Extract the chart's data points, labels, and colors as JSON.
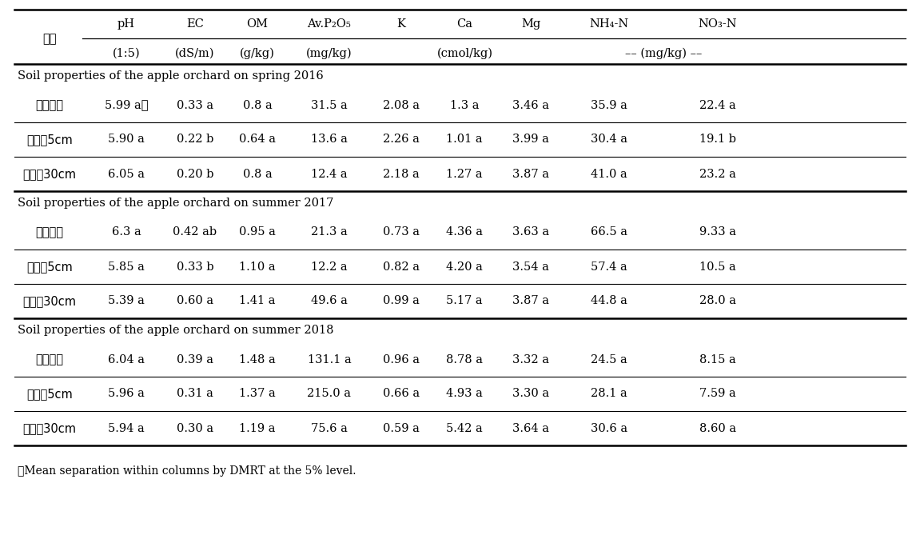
{
  "col_headers_line1": [
    "pH",
    "EC",
    "OM",
    "Av.P₂O₅",
    "K",
    "Ca",
    "Mg",
    "NH₄-N",
    "NO₃-N"
  ],
  "col_headers_line2": [
    "(1:5)",
    "(dS/m)",
    "(g/kg)",
    "(mg/kg)",
    "",
    "(cmol/kg)",
    "",
    "-- (mg/kg) --",
    ""
  ],
  "chori_label": "처리",
  "section_headers": [
    "Soil properties of the apple orchard on spring 2016",
    "Soil properties of the apple orchard on summer 2017",
    "Soil properties of the apple orchard on summer 2018"
  ],
  "sections": [
    [
      [
        "지표점적",
        "5.99 aᵺ",
        "0.33 a",
        "0.8 a",
        "31.5 a",
        "2.08 a",
        "1.3 a",
        "3.46 a",
        "35.9 a",
        "22.4 a"
      ],
      [
        "지중녑5cm",
        "5.90 a",
        "0.22 b",
        "0.64 a",
        "13.6 a",
        "2.26 a",
        "1.01 a",
        "3.99 a",
        "30.4 a",
        "19.1 b"
      ],
      [
        "지중녑30cm",
        "6.05 a",
        "0.20 b",
        "0.8 a",
        "12.4 a",
        "2.18 a",
        "1.27 a",
        "3.87 a",
        "41.0 a",
        "23.2 a"
      ]
    ],
    [
      [
        "지표점적",
        "6.3 a",
        "0.42 ab",
        "0.95 a",
        "21.3 a",
        "0.73 a",
        "4.36 a",
        "3.63 a",
        "66.5 a",
        "9.33 a"
      ],
      [
        "지중녑5cm",
        "5.85 a",
        "0.33 b",
        "1.10 a",
        "12.2 a",
        "0.82 a",
        "4.20 a",
        "3.54 a",
        "57.4 a",
        "10.5 a"
      ],
      [
        "지중녑30cm",
        "5.39 a",
        "0.60 a",
        "1.41 a",
        "49.6 a",
        "0.99 a",
        "5.17 a",
        "3.87 a",
        "44.8 a",
        "28.0 a"
      ]
    ],
    [
      [
        "지표점적",
        "6.04 a",
        "0.39 a",
        "1.48 a",
        "131.1 a",
        "0.96 a",
        "8.78 a",
        "3.32 a",
        "24.5 a",
        "8.15 a"
      ],
      [
        "지중녑5cm",
        "5.96 a",
        "0.31 a",
        "1.37 a",
        "215.0 a",
        "0.66 a",
        "4.93 a",
        "3.30 a",
        "28.1 a",
        "7.59 a"
      ],
      [
        "지중녑30cm",
        "5.94 a",
        "0.30 a",
        "1.19 a",
        "75.6 a",
        "0.59 a",
        "5.42 a",
        "3.64 a",
        "30.6 a",
        "8.60 a"
      ]
    ]
  ],
  "footnote": "ᵺMean separation within columns by DMRT at the 5% level.",
  "background_color": "#ffffff",
  "text_color": "#000000",
  "font_size": 10.5,
  "footnote_font_size": 10.0
}
